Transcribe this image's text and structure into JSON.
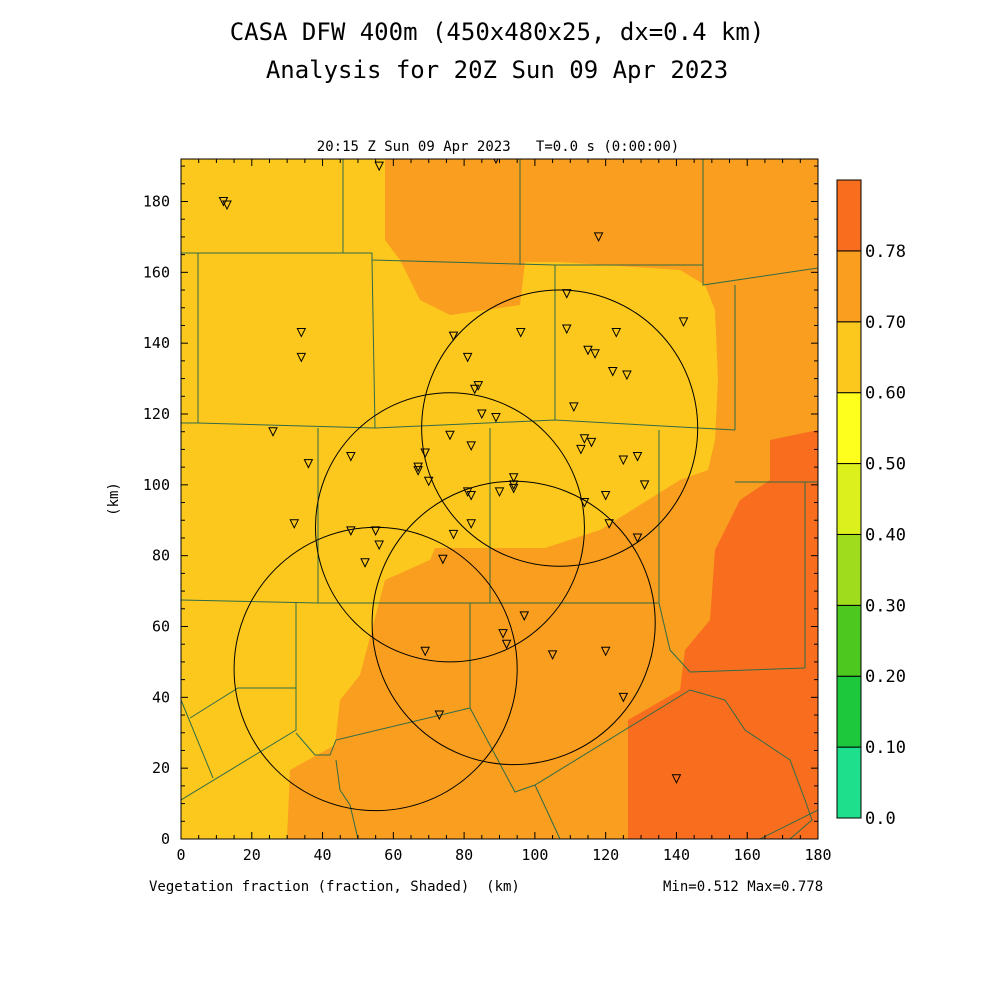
{
  "figure": {
    "title_line1": "CASA DFW 400m (450x480x25, dx=0.4 km)",
    "title_line2": "Analysis for 20Z Sun 09 Apr 2023",
    "subtitle": "20:15 Z Sun 09 Apr 2023   T=0.0 s (0:00:00)",
    "footer_left": "Vegetation fraction (fraction, Shaded)  (km)",
    "footer_right": "Min=0.512 Max=0.778"
  },
  "axes": {
    "x_ticks": [
      "0",
      "20",
      "40",
      "60",
      "80",
      "100",
      "120",
      "140",
      "160",
      "180"
    ],
    "y_ticks": [
      "0",
      "20",
      "40",
      "60",
      "80",
      "100",
      "120",
      "140",
      "160",
      "180"
    ],
    "ylabel": "(km)",
    "xlim": [
      0,
      180
    ],
    "ylim": [
      0,
      192
    ]
  },
  "colorbar": {
    "labels": [
      "0.0",
      "0.10",
      "0.20",
      "0.30",
      "0.40",
      "0.50",
      "0.60",
      "0.70",
      "0.78"
    ],
    "colors": [
      "#1ee08c",
      "#1ec83c",
      "#4cc81e",
      "#a0dc1e",
      "#dcf01e",
      "#ffff1e",
      "#fcc81e",
      "#f99e1e",
      "#f96e1e"
    ]
  },
  "field_colors": {
    "low": "#fcc81e",
    "mid": "#f99e1e",
    "high": "#f96e1e"
  },
  "chart_data": {
    "type": "map",
    "field": "Vegetation fraction",
    "units": "fraction",
    "min": 0.512,
    "max": 0.778,
    "radar_rings_km": [
      {
        "cx": 107,
        "cy": 116,
        "r": 39
      },
      {
        "cx": 76,
        "cy": 88,
        "r": 38
      },
      {
        "cx": 94,
        "cy": 61,
        "r": 40
      },
      {
        "cx": 55,
        "cy": 48,
        "r": 40
      }
    ],
    "stations_km": [
      [
        12,
        180
      ],
      [
        13,
        179
      ],
      [
        56,
        190
      ],
      [
        89,
        192
      ],
      [
        118,
        170
      ],
      [
        34,
        143
      ],
      [
        34,
        136
      ],
      [
        77,
        142
      ],
      [
        81,
        136
      ],
      [
        96,
        143
      ],
      [
        109,
        154
      ],
      [
        109,
        144
      ],
      [
        115,
        138
      ],
      [
        117,
        137
      ],
      [
        122,
        132
      ],
      [
        123,
        143
      ],
      [
        126,
        131
      ],
      [
        142,
        146
      ],
      [
        83,
        127
      ],
      [
        84,
        128
      ],
      [
        85,
        120
      ],
      [
        89,
        119
      ],
      [
        111,
        122
      ],
      [
        26,
        115
      ],
      [
        36,
        106
      ],
      [
        48,
        108
      ],
      [
        67,
        104
      ],
      [
        67,
        105
      ],
      [
        69,
        109
      ],
      [
        70,
        101
      ],
      [
        76,
        114
      ],
      [
        82,
        111
      ],
      [
        94,
        102
      ],
      [
        94,
        100
      ],
      [
        94,
        99
      ],
      [
        81,
        98
      ],
      [
        82,
        97
      ],
      [
        90,
        98
      ],
      [
        113,
        110
      ],
      [
        114,
        113
      ],
      [
        116,
        112
      ],
      [
        125,
        107
      ],
      [
        129,
        108
      ],
      [
        131,
        100
      ],
      [
        114,
        95
      ],
      [
        120,
        97
      ],
      [
        121,
        89
      ],
      [
        129,
        85
      ],
      [
        32,
        89
      ],
      [
        48,
        87
      ],
      [
        55,
        87
      ],
      [
        56,
        83
      ],
      [
        52,
        78
      ],
      [
        74,
        79
      ],
      [
        77,
        86
      ],
      [
        82,
        89
      ],
      [
        97,
        63
      ],
      [
        91,
        58
      ],
      [
        92,
        55
      ],
      [
        105,
        52
      ],
      [
        120,
        53
      ],
      [
        125,
        40
      ],
      [
        69,
        53
      ],
      [
        73,
        35
      ],
      [
        140,
        17
      ]
    ]
  }
}
